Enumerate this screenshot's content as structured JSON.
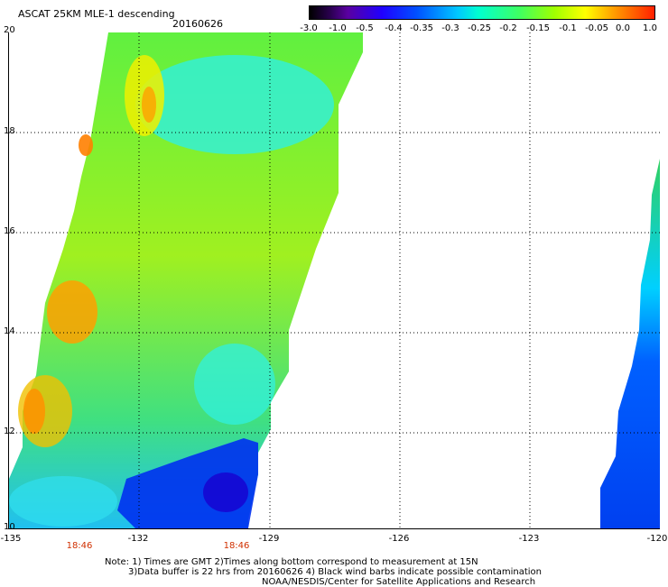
{
  "header": {
    "title": "ASCAT 25KM MLE-1 descending",
    "date": "20160626"
  },
  "colorbar": {
    "ticks": [
      "-3.0",
      "-1.0",
      "-0.5",
      "-0.4",
      "-0.35",
      "-0.3",
      "-0.25",
      "-0.2",
      "-0.15",
      "-0.1",
      "-0.05",
      "0.0",
      "1.0"
    ]
  },
  "axes": {
    "y_labels": [
      "20",
      "18",
      "16",
      "14",
      "12",
      "10"
    ],
    "x_labels": [
      "-135",
      "-132",
      "-129",
      "-126",
      "-123",
      "-120"
    ],
    "times": [
      "18:46",
      "18:46"
    ]
  },
  "notes": {
    "line1": "Note: 1) Times are GMT 2)Times along bottom correspond to measurement at 15N",
    "line2": "3)Data buffer is 22 hrs from 20160626 4) Black wind barbs indicate possible contamination",
    "line3": "NOAA/NESDIS/Center for Satellite Applications and Research"
  },
  "colors": {
    "time_label": "#d03000",
    "grid": "#000000"
  }
}
